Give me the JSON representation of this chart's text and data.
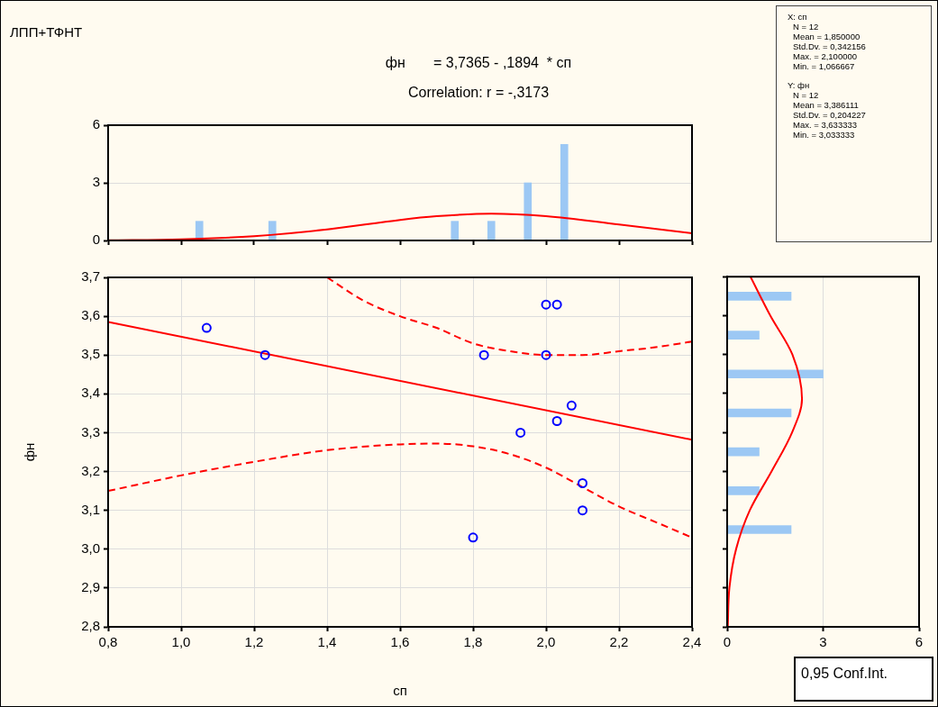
{
  "chart_data": [
    {
      "type": "bar",
      "title": "ЛПП+ТФНТ",
      "subtitle": "фн       = 3,7365 - ,1894  * сп",
      "annotations": [
        "Correlation: r = -,3173"
      ],
      "x": [
        1.05,
        1.25,
        1.75,
        1.85,
        1.95,
        2.05
      ],
      "xlim": [
        0.8,
        2.4
      ],
      "xticks": [
        0.8,
        1.0,
        1.2,
        1.4,
        1.6,
        1.8,
        2.0,
        2.2,
        2.4
      ],
      "ylim": [
        0,
        6
      ],
      "yticks": [
        0,
        3,
        6
      ],
      "tick_labels": "y",
      "grid": "y",
      "series": [
        {
          "color": "#9cc8f4",
          "values": [
            1,
            1,
            1,
            1,
            3,
            5
          ]
        },
        {
          "type": "line",
          "color": "#ff0000",
          "x": [
            0.8,
            1.0,
            1.2,
            1.4,
            1.6,
            1.7,
            1.85,
            2.0,
            2.2,
            2.4
          ],
          "values": [
            0.01,
            0.06,
            0.22,
            0.57,
            1.07,
            1.26,
            1.4,
            1.27,
            0.83,
            0.38
          ]
        }
      ]
    },
    {
      "type": "scatter",
      "annotations": [
        "0,95 Conf.Int."
      ],
      "xlabel": "сп",
      "ylabel": "фн",
      "xlim": [
        0.8,
        2.4
      ],
      "xticks": [
        {
          "value": 0.8,
          "label": "0,8"
        },
        {
          "value": 1.0,
          "label": "1,0"
        },
        {
          "value": 1.2,
          "label": "1,2"
        },
        {
          "value": 1.4,
          "label": "1,4"
        },
        {
          "value": 1.6,
          "label": "1,6"
        },
        {
          "value": 1.8,
          "label": "1,8"
        },
        {
          "value": 2.0,
          "label": "2,0"
        },
        {
          "value": 2.2,
          "label": "2,2"
        },
        {
          "value": 2.4,
          "label": "2,4"
        }
      ],
      "ylim": [
        2.8,
        3.7
      ],
      "yticks": [
        {
          "value": 2.8,
          "label": "2,8"
        },
        {
          "value": 2.9,
          "label": "2,9"
        },
        {
          "value": 3.0,
          "label": "3,0"
        },
        {
          "value": 3.1,
          "label": "3,1"
        },
        {
          "value": 3.2,
          "label": "3,2"
        },
        {
          "value": 3.3,
          "label": "3,3"
        },
        {
          "value": 3.4,
          "label": "3,4"
        },
        {
          "value": 3.5,
          "label": "3,5"
        },
        {
          "value": 3.6,
          "label": "3,6"
        },
        {
          "value": 3.7,
          "label": "3,7"
        }
      ],
      "grid": true,
      "series": [
        {
          "color": "#0000ff",
          "marker": "circle",
          "x": [
            1.07,
            1.23,
            1.83,
            2.0,
            2.03,
            2.0,
            2.07,
            2.03,
            1.93,
            2.1,
            2.1,
            1.8
          ],
          "values": [
            3.57,
            3.5,
            3.5,
            3.63,
            3.63,
            3.5,
            3.37,
            3.33,
            3.3,
            3.17,
            3.1,
            3.03
          ]
        },
        {
          "type": "line",
          "color": "#ff0000",
          "x": [
            0.8,
            2.4
          ],
          "values": [
            3.585,
            3.282
          ]
        },
        {
          "type": "line",
          "color": "#ff0000",
          "line_style": "dashed",
          "x": [
            1.4,
            1.5,
            1.6,
            1.7,
            1.8,
            1.9,
            2.0,
            2.1,
            2.2,
            2.3,
            2.4
          ],
          "values": [
            3.7,
            3.64,
            3.6,
            3.57,
            3.53,
            3.51,
            3.5,
            3.5,
            3.51,
            3.52,
            3.535
          ]
        },
        {
          "type": "line",
          "color": "#ff0000",
          "line_style": "dashed",
          "x": [
            0.8,
            1.0,
            1.2,
            1.4,
            1.6,
            1.7,
            1.8,
            1.9,
            2.0,
            2.1,
            2.2,
            2.3,
            2.4
          ],
          "values": [
            3.15,
            3.19,
            3.225,
            3.255,
            3.27,
            3.272,
            3.265,
            3.245,
            3.21,
            3.16,
            3.11,
            3.07,
            3.03
          ]
        }
      ]
    },
    {
      "type": "bar",
      "orientation": "horizontal",
      "x": [
        3.65,
        3.55,
        3.45,
        3.35,
        3.25,
        3.15,
        3.05
      ],
      "xlim": [
        0,
        6
      ],
      "xticks": [
        0,
        3,
        6
      ],
      "ylim": [
        2.8,
        3.7
      ],
      "yticks": [
        2.8,
        2.9,
        3.0,
        3.1,
        3.2,
        3.3,
        3.4,
        3.5,
        3.6,
        3.7
      ],
      "tick_labels": "x",
      "grid": "x",
      "series": [
        {
          "color": "#9cc8f4",
          "values": [
            2,
            1,
            3,
            2,
            1,
            1,
            2
          ]
        },
        {
          "type": "line",
          "color": "#ff0000",
          "x": [
            2.8,
            2.9,
            3.0,
            3.1,
            3.2,
            3.3,
            3.386,
            3.5,
            3.6,
            3.7
          ],
          "values": [
            0.02,
            0.07,
            0.28,
            0.71,
            1.39,
            2.03,
            2.34,
            2.04,
            1.35,
            0.73
          ]
        }
      ]
    },
    {
      "type": "other",
      "annotations": [
        "X: сп",
        "N = 12",
        "Mean = 1,850000",
        "Std.Dv. = 0,342156",
        "Max. = 2,100000",
        "Min. = 1,066667",
        "Y: фн",
        "N = 12",
        "Mean = 3,386111",
        "Std.Dv. = 0,204227",
        "Max. = 3,633333",
        "Min. = 3,033333"
      ]
    }
  ]
}
